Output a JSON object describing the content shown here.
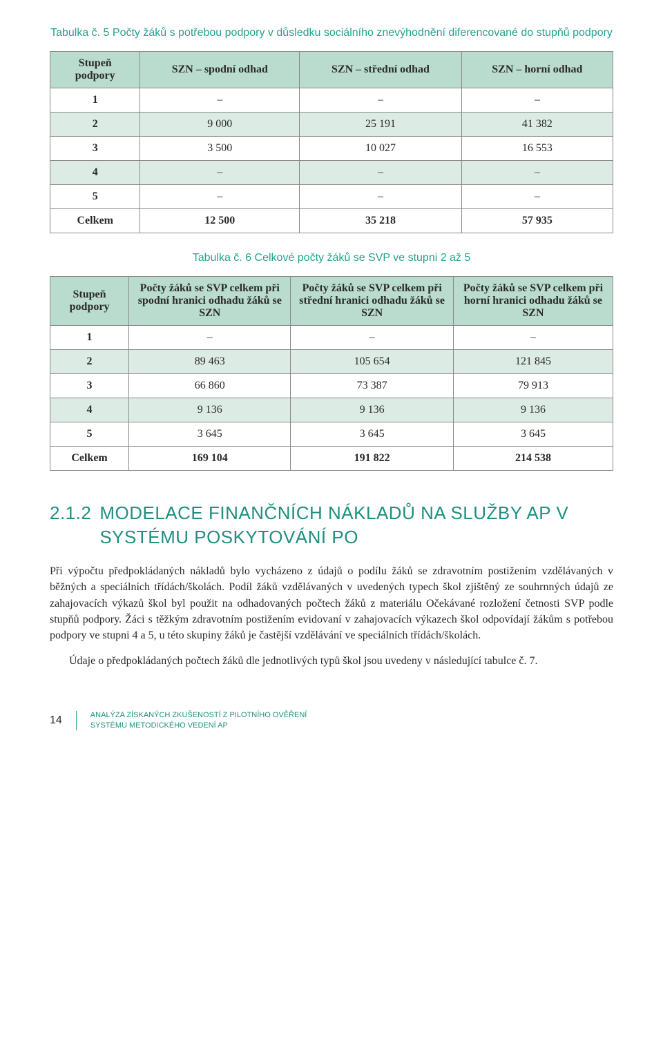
{
  "colors": {
    "accent": "#26a18f",
    "heading": "#1e8f80",
    "tableHeaderBg": "#b9dccf",
    "tableAltBg": "#dcece5",
    "tableBorder": "#888888",
    "textDark": "#2a2a2a"
  },
  "table5": {
    "caption": "Tabulka č. 5 Počty žáků s potřebou podpory v důsledku sociálního znevýhodnění diferencované do stupňů podpory",
    "columns": [
      "Stupeň podpory",
      "SZN – spodní odhad",
      "SZN – střední odhad",
      "SZN – horní odhad"
    ],
    "rows": [
      [
        "1",
        "–",
        "–",
        "–"
      ],
      [
        "2",
        "9 000",
        "25 191",
        "41 382"
      ],
      [
        "3",
        "3 500",
        "10 027",
        "16 553"
      ],
      [
        "4",
        "–",
        "–",
        "–"
      ],
      [
        "5",
        "–",
        "–",
        "–"
      ],
      [
        "Celkem",
        "12 500",
        "35 218",
        "57 935"
      ]
    ],
    "altRowIndices": [
      1,
      3
    ],
    "boldRowIndices": [
      5
    ],
    "firstColWidth": "16%"
  },
  "table6": {
    "caption": "Tabulka č. 6 Celkové počty žáků se SVP ve stupni 2 až 5",
    "columns": [
      "Stupeň podpory",
      "Počty žáků se SVP celkem při spodní hranici odhadu žáků se SZN",
      "Počty žáků se SVP celkem při střední hranici odhadu žáků se SZN",
      "Počty žáků se SVP celkem při horní hranici odhadu žáků se SZN"
    ],
    "rows": [
      [
        "1",
        "–",
        "–",
        "–"
      ],
      [
        "2",
        "89 463",
        "105 654",
        "121 845"
      ],
      [
        "3",
        "66 860",
        "73 387",
        "79 913"
      ],
      [
        "4",
        "9 136",
        "9 136",
        "9 136"
      ],
      [
        "5",
        "3 645",
        "3 645",
        "3 645"
      ],
      [
        "Celkem",
        "169 104",
        "191 822",
        "214 538"
      ]
    ],
    "altRowIndices": [
      1,
      3
    ],
    "boldRowIndices": [
      5
    ],
    "firstColWidth": "14%"
  },
  "section": {
    "number": "2.1.2",
    "title": "MODELACE FINANČNÍCH NÁKLADŮ NA SLUŽBY AP V SYSTÉMU POSKYTOVÁNÍ PO"
  },
  "paragraph1": "Při výpočtu předpokládaných nákladů bylo vycházeno z údajů o podílu žáků se zdravotním postižením vzdělávaných v běžných a speciálních třídách/školách. Podíl žáků vzdělávaných v uvedených typech škol zjištěný ze souhrnných údajů ze zahajovacích výkazů škol byl použit na odhadovaných počtech žáků z materiálu Očekávané rozložení četnosti SVP podle stupňů podpory. Žáci s těžkým zdravotním postižením evidovaní v zahajovacích výkazech škol odpovídají žákům s potřebou podpory ve stupni 4 a 5, u této skupiny žáků je častější vzdělávání ve speciálních třídách/školách.",
  "paragraph2": "Údaje o předpokládaných počtech žáků dle jednotlivých typů škol jsou uvedeny v následující tabulce č. 7.",
  "footer": {
    "pageNumber": "14",
    "line1": "ANALÝZA ZÍSKANÝCH ZKUŠENOSTÍ Z PILOTNÍHO OVĚŘENÍ",
    "line2": "SYSTÉMU METODICKÉHO VEDENÍ AP"
  }
}
